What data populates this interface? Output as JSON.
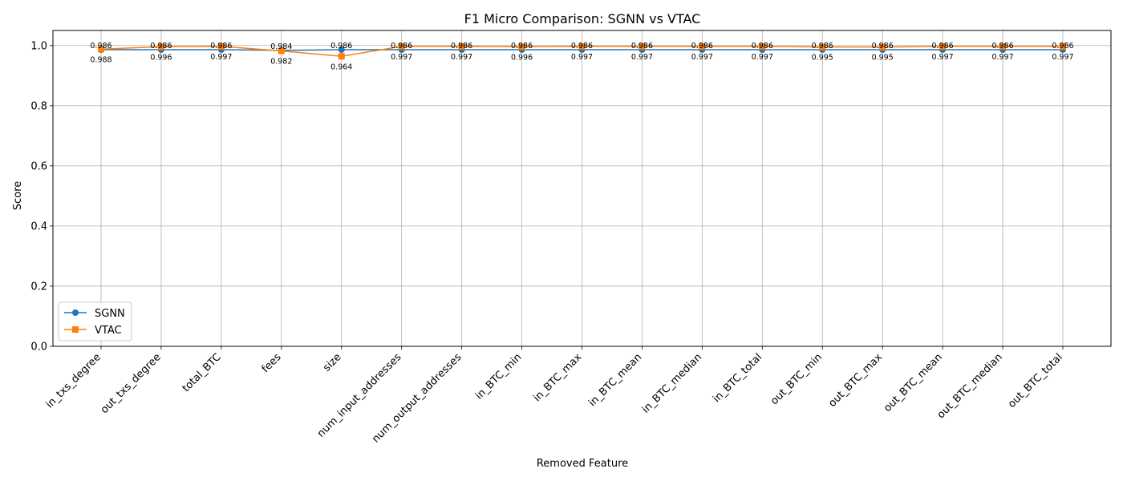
{
  "chart_data": {
    "type": "line",
    "title": "F1 Micro Comparison: SGNN vs VTAC",
    "xlabel": "Removed Feature",
    "ylabel": "Score",
    "ylim": [
      0.0,
      1.05
    ],
    "yticks": [
      "0.0",
      "0.2",
      "0.4",
      "0.6",
      "0.8",
      "1.0"
    ],
    "grid": true,
    "legend_position": "lower-left",
    "categories": [
      "in_txs_degree",
      "out_txs_degree",
      "total_BTC",
      "fees",
      "size",
      "num_input_addresses",
      "num_output_addresses",
      "in_BTC_min",
      "in_BTC_max",
      "in_BTC_mean",
      "in_BTC_median",
      "in_BTC_total",
      "out_BTC_min",
      "out_BTC_max",
      "out_BTC_mean",
      "out_BTC_median",
      "out_BTC_total"
    ],
    "series": [
      {
        "name": "SGNN",
        "color": "#1f77b4",
        "marker": "circle",
        "values": [
          0.986,
          0.986,
          0.986,
          0.984,
          0.986,
          0.986,
          0.986,
          0.986,
          0.986,
          0.986,
          0.986,
          0.986,
          0.986,
          0.986,
          0.986,
          0.986,
          0.986
        ],
        "labels": [
          "0.986",
          "0.986",
          "0.986",
          "0.984",
          "0.986",
          "0.986",
          "0.986",
          "0.986",
          "0.986",
          "0.986",
          "0.986",
          "0.986",
          "0.986",
          "0.986",
          "0.986",
          "0.986",
          "0.986"
        ]
      },
      {
        "name": "VTAC",
        "color": "#ff7f0e",
        "marker": "square",
        "values": [
          0.988,
          0.996,
          0.997,
          0.982,
          0.964,
          0.997,
          0.997,
          0.996,
          0.997,
          0.997,
          0.997,
          0.997,
          0.995,
          0.995,
          0.997,
          0.997,
          0.997
        ],
        "labels": [
          "0.988",
          "0.996",
          "0.997",
          "0.982",
          "0.964",
          "0.997",
          "0.997",
          "0.996",
          "0.997",
          "0.997",
          "0.997",
          "0.997",
          "0.995",
          "0.995",
          "0.997",
          "0.997",
          "0.997"
        ]
      }
    ]
  }
}
